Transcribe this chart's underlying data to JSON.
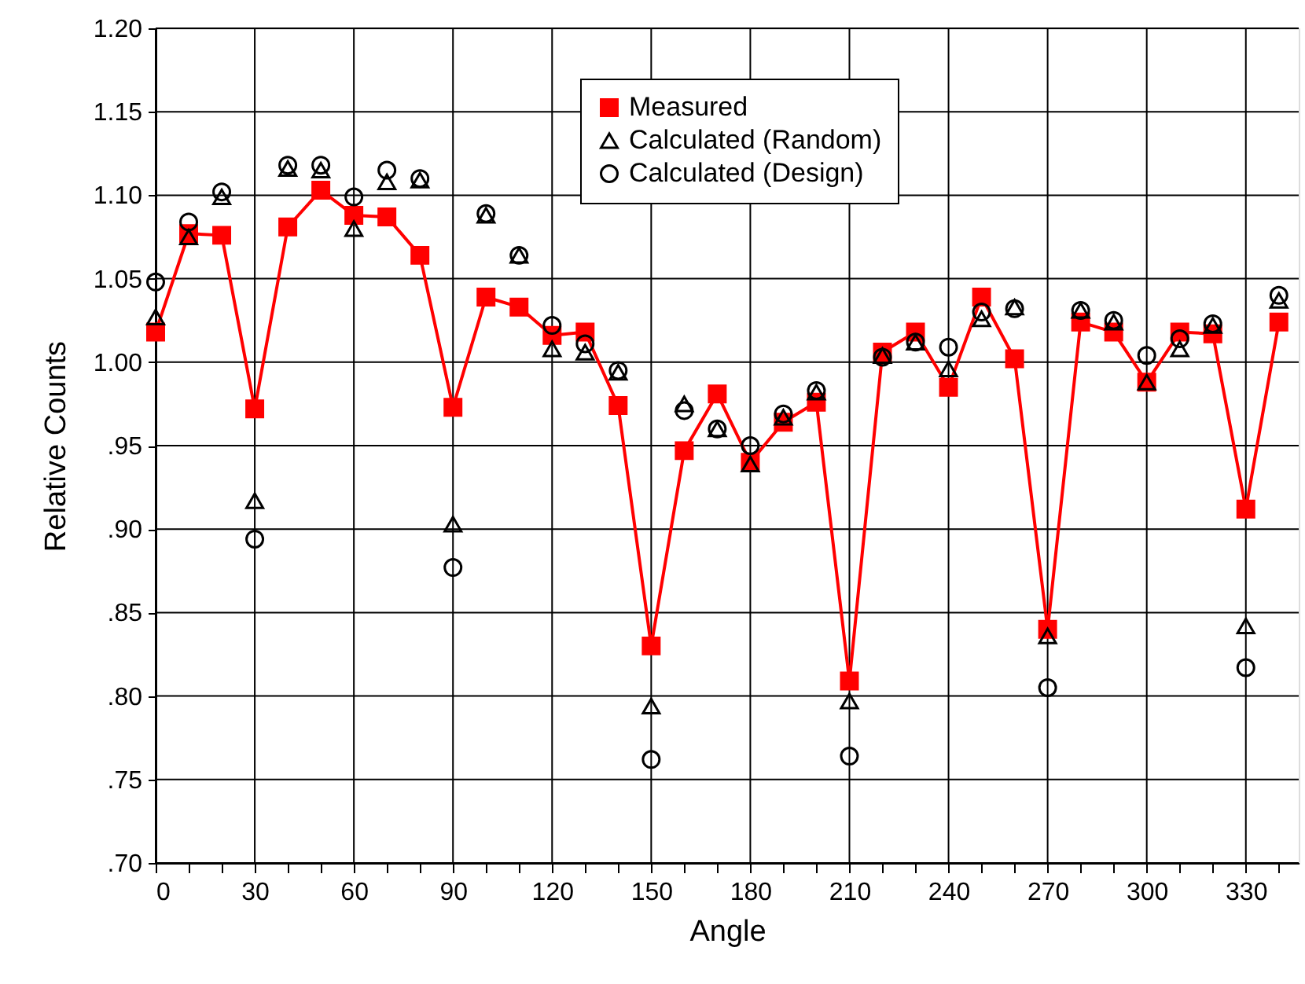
{
  "chart_data": {
    "type": "line",
    "xlabel": "Angle",
    "ylabel": "Relative Counts",
    "x": [
      0,
      10,
      20,
      30,
      40,
      50,
      60,
      70,
      80,
      90,
      100,
      110,
      120,
      130,
      140,
      150,
      160,
      170,
      180,
      190,
      200,
      210,
      220,
      230,
      240,
      250,
      260,
      270,
      280,
      290,
      300,
      310,
      320,
      330,
      340
    ],
    "series": [
      {
        "name": "Measured",
        "marker": "square",
        "color": "#ff0000",
        "values": [
          1.018,
          1.077,
          1.076,
          0.972,
          1.081,
          1.103,
          1.088,
          1.087,
          1.064,
          0.973,
          1.039,
          1.033,
          1.016,
          1.018,
          0.974,
          0.83,
          0.947,
          0.981,
          0.94,
          0.964,
          0.976,
          0.809,
          1.006,
          1.018,
          0.985,
          1.039,
          1.002,
          0.84,
          1.024,
          1.018,
          0.988,
          1.018,
          1.017,
          0.912,
          1.024
        ]
      },
      {
        "name": "Calculated (Random)",
        "type": "scatter",
        "marker": "triangle",
        "color": "#000000",
        "values": [
          1.027,
          1.075,
          1.099,
          0.917,
          1.116,
          1.115,
          1.08,
          1.108,
          1.109,
          0.903,
          1.088,
          1.064,
          1.008,
          1.006,
          0.994,
          0.794,
          0.975,
          0.96,
          0.939,
          0.967,
          0.982,
          0.797,
          1.004,
          1.012,
          0.996,
          1.026,
          1.033,
          0.836,
          1.031,
          1.024,
          0.988,
          1.008,
          1.022,
          0.842,
          1.037
        ]
      },
      {
        "name": "Calculated (Design)",
        "type": "scatter",
        "marker": "circle",
        "color": "#000000",
        "values": [
          1.048,
          1.084,
          1.102,
          0.894,
          1.118,
          1.118,
          1.099,
          1.115,
          1.11,
          0.877,
          1.089,
          1.064,
          1.022,
          1.011,
          0.995,
          0.762,
          0.971,
          0.96,
          0.95,
          0.969,
          0.983,
          0.764,
          1.003,
          1.012,
          1.009,
          1.03,
          1.032,
          0.805,
          1.031,
          1.025,
          1.004,
          1.014,
          1.023,
          0.817,
          1.04
        ]
      }
    ],
    "xlim": [
      0,
      346
    ],
    "xticks": [
      0,
      {
        "value": 10,
        "label": null
      },
      {
        "value": 20,
        "label": null
      },
      30,
      {
        "value": 40,
        "label": null
      },
      {
        "value": 50,
        "label": null
      },
      60,
      {
        "value": 70,
        "label": null
      },
      {
        "value": 80,
        "label": null
      },
      90,
      {
        "value": 100,
        "label": null
      },
      {
        "value": 110,
        "label": null
      },
      120,
      {
        "value": 130,
        "label": null
      },
      {
        "value": 140,
        "label": null
      },
      150,
      {
        "value": 160,
        "label": null
      },
      {
        "value": 170,
        "label": null
      },
      180,
      {
        "value": 190,
        "label": null
      },
      {
        "value": 200,
        "label": null
      },
      210,
      {
        "value": 220,
        "label": null
      },
      {
        "value": 230,
        "label": null
      },
      240,
      {
        "value": 250,
        "label": null
      },
      {
        "value": 260,
        "label": null
      },
      270,
      {
        "value": 280,
        "label": null
      },
      {
        "value": 290,
        "label": null
      },
      300,
      {
        "value": 310,
        "label": null
      },
      {
        "value": 320,
        "label": null
      },
      330,
      {
        "value": 340,
        "label": null
      }
    ],
    "ylim": [
      0.7,
      1.2
    ],
    "yticks": [
      {
        "value": 0.7,
        "label": ".70"
      },
      {
        "value": 0.75,
        "label": ".75"
      },
      {
        "value": 0.8,
        "label": ".80"
      },
      {
        "value": 0.85,
        "label": ".85"
      },
      {
        "value": 0.9,
        "label": ".90"
      },
      {
        "value": 0.95,
        "label": ".95"
      },
      {
        "value": 1.0,
        "label": "1.00"
      },
      {
        "value": 1.05,
        "label": "1.05"
      },
      {
        "value": 1.1,
        "label": "1.10"
      },
      {
        "value": 1.15,
        "label": "1.15"
      },
      {
        "value": 1.2,
        "label": "1.20"
      }
    ],
    "grid": true,
    "legend": "top"
  }
}
